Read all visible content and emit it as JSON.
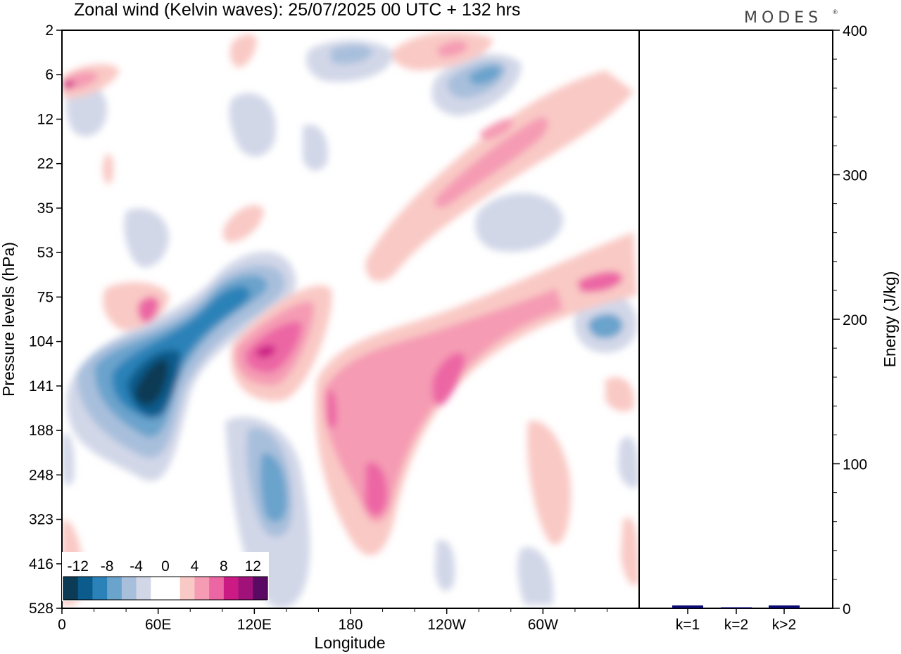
{
  "title": "Zonal wind (Kelvin waves):  25/07/2025  00 UTC  + 132 hrs",
  "logo": "MODES",
  "colors": {
    "neg": [
      "#0b3b55",
      "#0b5c8c",
      "#2b82b8",
      "#6aa3cc",
      "#a8bfdc",
      "#d2d7e8"
    ],
    "zero": "#ffffff",
    "pos": [
      "#f9c9c5",
      "#f59bb4",
      "#ec66a4",
      "#cc1a85",
      "#a0127a",
      "#5a0a62"
    ],
    "bar": "#0a0a6e"
  },
  "chart_data": [
    {
      "type": "heatmap",
      "title": "Zonal wind (Kelvin waves)",
      "xlabel": "Longitude",
      "ylabel": "Pressure levels (hPa)",
      "x_ticks": [
        "0",
        "60E",
        "120E",
        "180",
        "120W",
        "60W"
      ],
      "x_range_deg": [
        0,
        360
      ],
      "y_levels": [
        "2",
        "6",
        "12",
        "22",
        "35",
        "53",
        "75",
        "104",
        "141",
        "188",
        "248",
        "323",
        "416",
        "528"
      ],
      "colorbar_labels": [
        "-12",
        "-8",
        "-4",
        "0",
        "4",
        "8",
        "12"
      ],
      "features": [
        {
          "label": "strong easterly anomaly",
          "lon": 52,
          "level": "141",
          "value": -12
        },
        {
          "label": "easterly band",
          "lon": 95,
          "level": "75",
          "value": -8
        },
        {
          "label": "easterly anomaly",
          "lon": 135,
          "level": "248",
          "value": -6
        },
        {
          "label": "westerly anomaly",
          "lon": 128,
          "level": "104",
          "value": 10
        },
        {
          "label": "westerly anomaly",
          "lon": 245,
          "level": "141",
          "value": 8
        },
        {
          "label": "westerly anomaly",
          "lon": 270,
          "level": "12",
          "value": 6
        },
        {
          "label": "easterly anomaly",
          "lon": 265,
          "level": "6",
          "value": -7
        }
      ]
    },
    {
      "type": "bar",
      "ylabel": "Energy (J/kg)",
      "categories": [
        "k=1",
        "k=2",
        "k>2"
      ],
      "values": [
        2,
        0.5,
        2
      ],
      "ylim": [
        0,
        400
      ],
      "y_ticks": [
        "0",
        "100",
        "200",
        "300",
        "400"
      ]
    }
  ]
}
